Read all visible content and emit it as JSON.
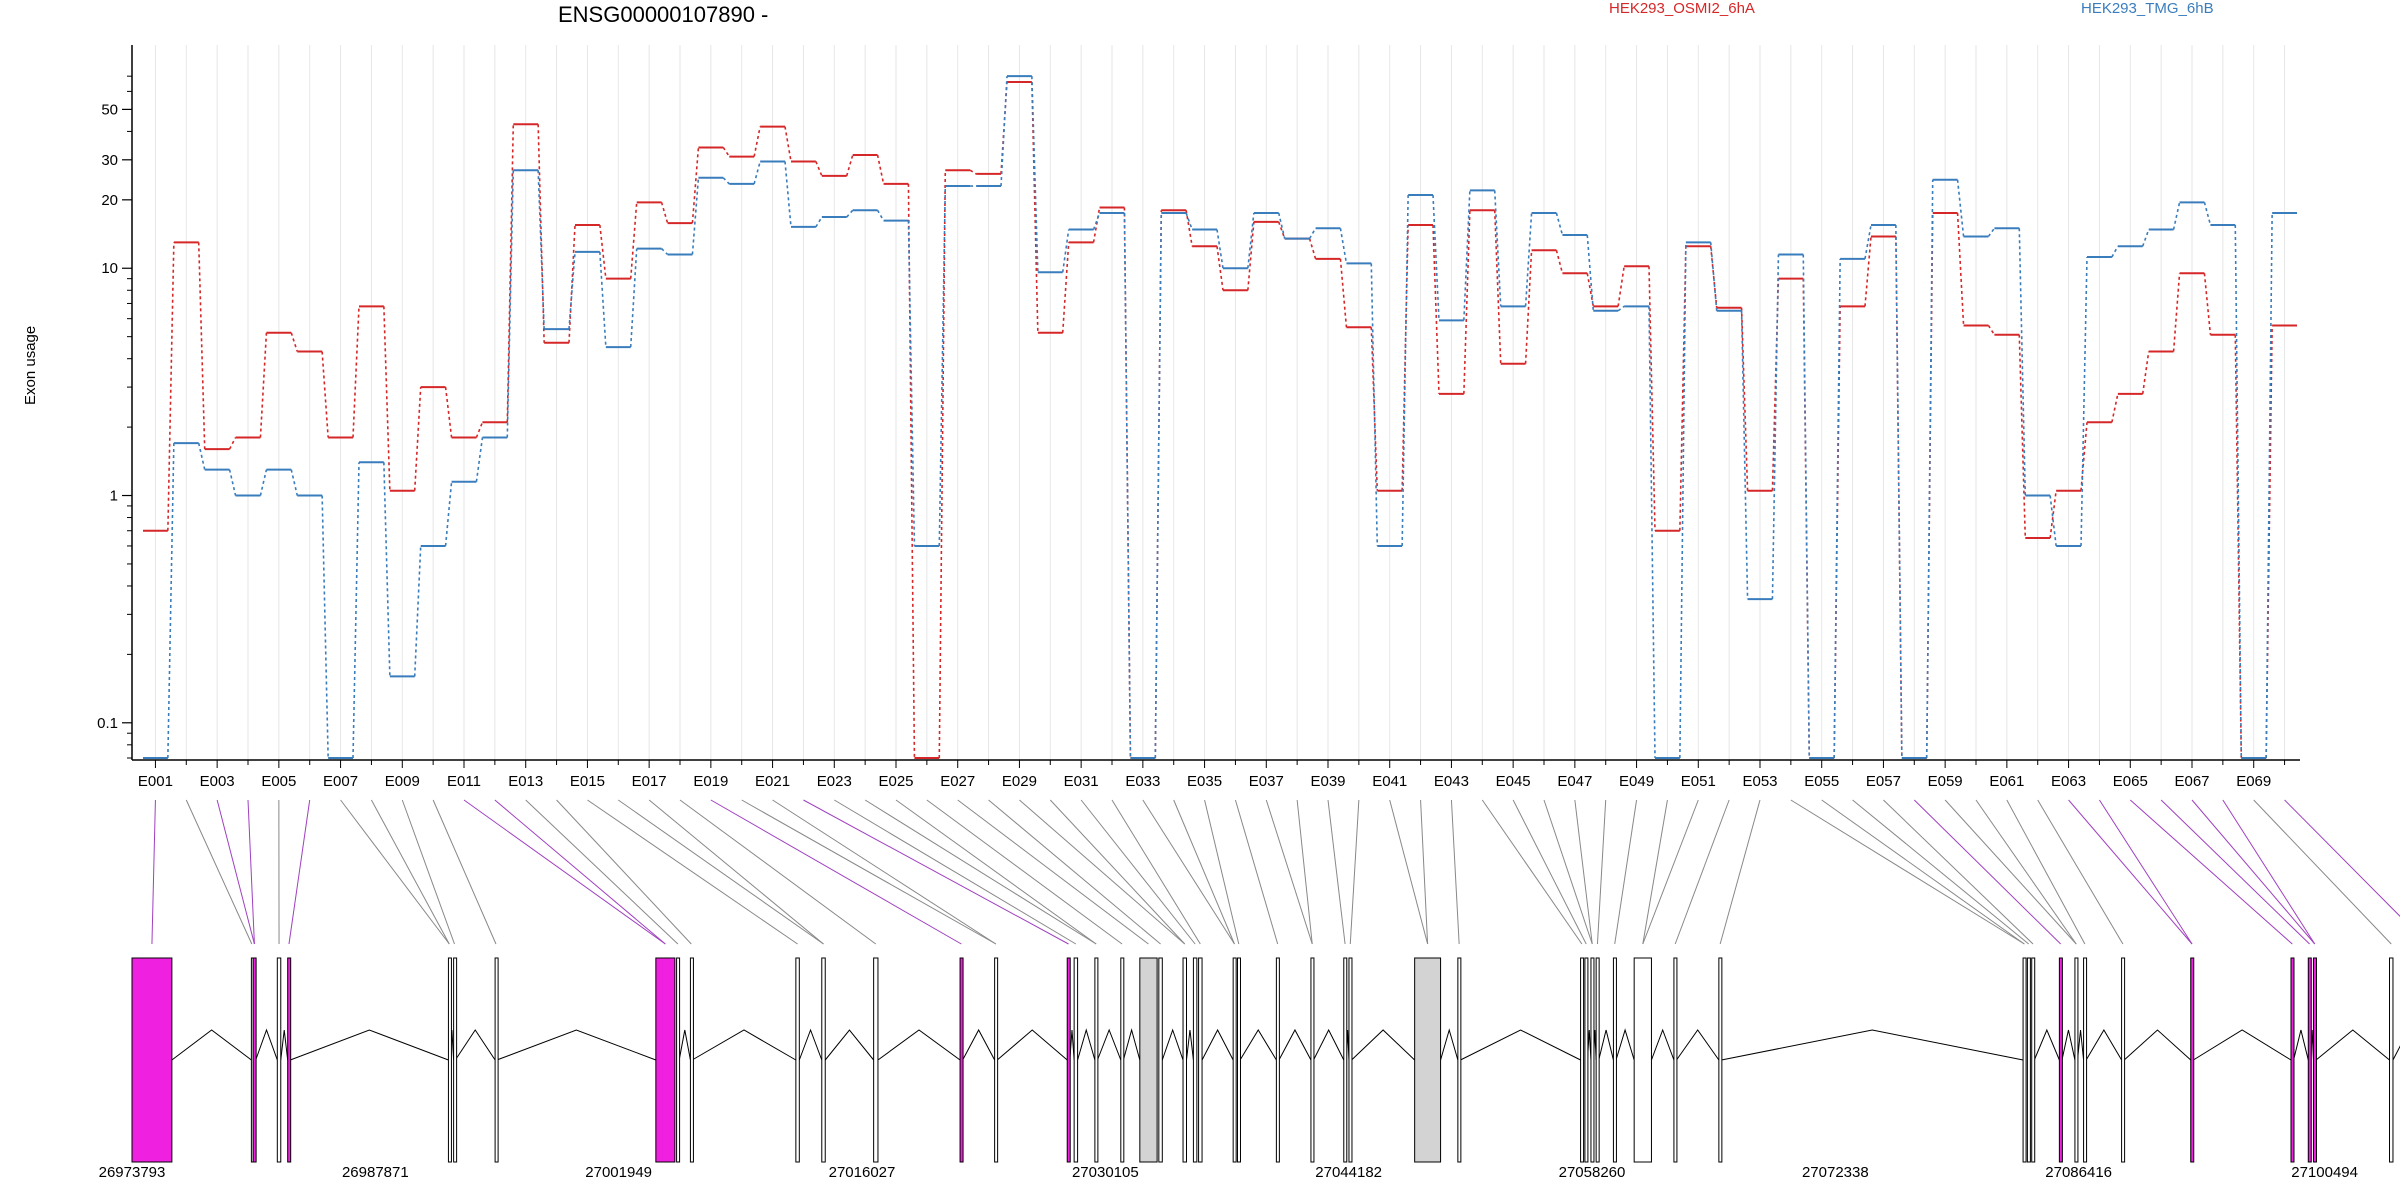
{
  "chart_data": {
    "type": "line",
    "title": "ENSG00000107890 -",
    "ylabel": "Exon usage",
    "y_scale": "log",
    "yticks": [
      "0.1",
      "1",
      "10",
      "20",
      "30",
      "50"
    ],
    "series_colors": [
      "#d62728",
      "#3a7dbd"
    ],
    "exon_labels": [
      "E001",
      "E003",
      "E005",
      "E007",
      "E009",
      "E011",
      "E013",
      "E015",
      "E017",
      "E019",
      "E021",
      "E023",
      "E025",
      "E027",
      "E029",
      "E031",
      "E033",
      "E035",
      "E037",
      "E039",
      "E041",
      "E043",
      "E045",
      "E047",
      "E049",
      "E051",
      "E053",
      "E055",
      "E057",
      "E059",
      "E061",
      "E063",
      "E065",
      "E067",
      "E069"
    ],
    "exons": [
      "E001",
      "E002",
      "E003",
      "E004",
      "E005",
      "E006",
      "E007",
      "E008",
      "E009",
      "E010",
      "E011",
      "E012",
      "E013",
      "E014",
      "E015",
      "E016",
      "E017",
      "E018",
      "E019",
      "E020",
      "E021",
      "E022",
      "E023",
      "E024",
      "E025",
      "E026",
      "E027",
      "E028",
      "E029",
      "E030",
      "E031",
      "E032",
      "E033",
      "E034",
      "E035",
      "E036",
      "E037",
      "E038",
      "E039",
      "E040",
      "E041",
      "E042",
      "E043",
      "E044",
      "E045",
      "E046",
      "E047",
      "E048",
      "E049",
      "E050",
      "E051",
      "E052",
      "E053",
      "E054",
      "E055",
      "E056",
      "E057",
      "E058",
      "E059",
      "E060",
      "E061",
      "E062",
      "E063",
      "E064",
      "E065",
      "E066",
      "E067",
      "E068",
      "E069",
      "E070"
    ],
    "series": [
      {
        "name": "HEK293_OSMI2_6hA",
        "values": [
          0.7,
          13,
          1.6,
          1.8,
          5.2,
          4.3,
          1.8,
          6.8,
          1.05,
          3,
          1.8,
          2.1,
          43,
          4.7,
          15.5,
          9,
          19.5,
          15.8,
          34,
          31,
          42,
          29.5,
          25.5,
          31.5,
          23.5,
          0.07,
          27,
          26,
          66,
          5.2,
          13,
          18.5,
          0.07,
          18,
          12.5,
          8,
          16,
          13.5,
          11,
          5.5,
          1.05,
          15.5,
          2.8,
          18,
          3.8,
          12,
          9.5,
          6.8,
          10.2,
          0.7,
          12.5,
          6.7,
          1.05,
          9,
          0.07,
          6.8,
          13.8,
          0.07,
          17.5,
          5.6,
          5.1,
          0.65,
          1.05,
          2.1,
          2.8,
          4.3,
          9.5,
          5.1,
          0.07,
          5.6
        ]
      },
      {
        "name": "HEK293_TMG_6hB",
        "values": [
          0.07,
          1.7,
          1.3,
          1.0,
          1.3,
          1.0,
          0.07,
          1.4,
          0.16,
          0.6,
          1.15,
          1.8,
          27,
          5.4,
          11.8,
          4.5,
          12.2,
          11.5,
          25,
          23.5,
          29.5,
          15.2,
          16.8,
          18,
          16.2,
          0.6,
          23,
          23,
          70,
          9.6,
          14.8,
          17.5,
          0.07,
          17.5,
          14.8,
          10,
          17.5,
          13.5,
          15,
          10.5,
          0.6,
          21,
          5.9,
          22,
          6.8,
          17.5,
          14,
          6.5,
          6.8,
          0.07,
          13,
          6.5,
          0.35,
          11.5,
          0.07,
          11,
          15.5,
          0.07,
          24.5,
          13.8,
          15,
          1.0,
          0.6,
          11.2,
          12.5,
          14.8,
          19.5,
          15.5,
          0.07,
          17.5
        ]
      }
    ],
    "gene_model": {
      "coord_ticks": [
        "26973793",
        "26987871",
        "27001949",
        "27016027",
        "27030105",
        "27044182",
        "27058260",
        "27072338",
        "27086416",
        "27100494"
      ],
      "coord_min": 26973793,
      "coord_max": 27100494,
      "exon_colors": {
        "normal": "#ffffff",
        "shaded": "#d3d3d3",
        "significant": "#f020e0"
      },
      "exon_blocks": [
        {
          "start": 26973793,
          "end": 26976100,
          "fill": "significant"
        },
        {
          "start": 26980700,
          "end": 26980750,
          "fill": "normal"
        },
        {
          "start": 26980800,
          "end": 26980950,
          "fill": "significant"
        },
        {
          "start": 26982200,
          "end": 26982400,
          "fill": "normal"
        },
        {
          "start": 26982800,
          "end": 26982950,
          "fill": "significant"
        },
        {
          "start": 26992100,
          "end": 26992200,
          "fill": "normal"
        },
        {
          "start": 26992400,
          "end": 26992500,
          "fill": "normal"
        },
        {
          "start": 26994800,
          "end": 26994900,
          "fill": "normal"
        },
        {
          "start": 27004100,
          "end": 27005200,
          "fill": "significant"
        },
        {
          "start": 27005300,
          "end": 27005450,
          "fill": "normal"
        },
        {
          "start": 27006100,
          "end": 27006200,
          "fill": "normal"
        },
        {
          "start": 27012200,
          "end": 27012400,
          "fill": "normal"
        },
        {
          "start": 27013700,
          "end": 27013900,
          "fill": "normal"
        },
        {
          "start": 27016700,
          "end": 27016950,
          "fill": "normal"
        },
        {
          "start": 27021700,
          "end": 27021850,
          "fill": "significant"
        },
        {
          "start": 27023700,
          "end": 27023850,
          "fill": "normal"
        },
        {
          "start": 27027900,
          "end": 27028050,
          "fill": "significant"
        },
        {
          "start": 27028300,
          "end": 27028500,
          "fill": "normal"
        },
        {
          "start": 27029500,
          "end": 27029650,
          "fill": "normal"
        },
        {
          "start": 27031000,
          "end": 27031150,
          "fill": "normal"
        },
        {
          "start": 27032100,
          "end": 27033100,
          "fill": "shaded"
        },
        {
          "start": 27033200,
          "end": 27033400,
          "fill": "normal"
        },
        {
          "start": 27034600,
          "end": 27034800,
          "fill": "normal"
        },
        {
          "start": 27035200,
          "end": 27035400,
          "fill": "normal"
        },
        {
          "start": 27035500,
          "end": 27035700,
          "fill": "normal"
        },
        {
          "start": 27037500,
          "end": 27037650,
          "fill": "normal"
        },
        {
          "start": 27037750,
          "end": 27037900,
          "fill": "normal"
        },
        {
          "start": 27040000,
          "end": 27040150,
          "fill": "normal"
        },
        {
          "start": 27042000,
          "end": 27042150,
          "fill": "normal"
        },
        {
          "start": 27043900,
          "end": 27044050,
          "fill": "normal"
        },
        {
          "start": 27044200,
          "end": 27044350,
          "fill": "normal"
        },
        {
          "start": 27048000,
          "end": 27049500,
          "fill": "shaded"
        },
        {
          "start": 27050500,
          "end": 27050650,
          "fill": "normal"
        },
        {
          "start": 27057600,
          "end": 27057750,
          "fill": "normal"
        },
        {
          "start": 27057850,
          "end": 27058000,
          "fill": "normal"
        },
        {
          "start": 27058200,
          "end": 27058350,
          "fill": "normal"
        },
        {
          "start": 27058500,
          "end": 27058650,
          "fill": "normal"
        },
        {
          "start": 27059500,
          "end": 27059650,
          "fill": "normal"
        },
        {
          "start": 27060700,
          "end": 27061700,
          "fill": "normal"
        },
        {
          "start": 27063000,
          "end": 27063150,
          "fill": "normal"
        },
        {
          "start": 27065600,
          "end": 27065750,
          "fill": "normal"
        },
        {
          "start": 27083200,
          "end": 27083350,
          "fill": "normal"
        },
        {
          "start": 27083450,
          "end": 27083600,
          "fill": "normal"
        },
        {
          "start": 27083700,
          "end": 27083850,
          "fill": "normal"
        },
        {
          "start": 27085300,
          "end": 27085450,
          "fill": "significant"
        },
        {
          "start": 27086200,
          "end": 27086350,
          "fill": "normal"
        },
        {
          "start": 27086700,
          "end": 27086850,
          "fill": "normal"
        },
        {
          "start": 27088900,
          "end": 27089050,
          "fill": "normal"
        },
        {
          "start": 27092900,
          "end": 27093050,
          "fill": "significant"
        },
        {
          "start": 27098700,
          "end": 27098850,
          "fill": "significant"
        },
        {
          "start": 27099700,
          "end": 27099850,
          "fill": "significant"
        },
        {
          "start": 27100000,
          "end": 27100150,
          "fill": "significant"
        },
        {
          "start": 27104400,
          "end": 27104600,
          "fill": "normal"
        },
        {
          "start": 27106400,
          "end": 27106800,
          "fill": "significant"
        }
      ]
    }
  }
}
